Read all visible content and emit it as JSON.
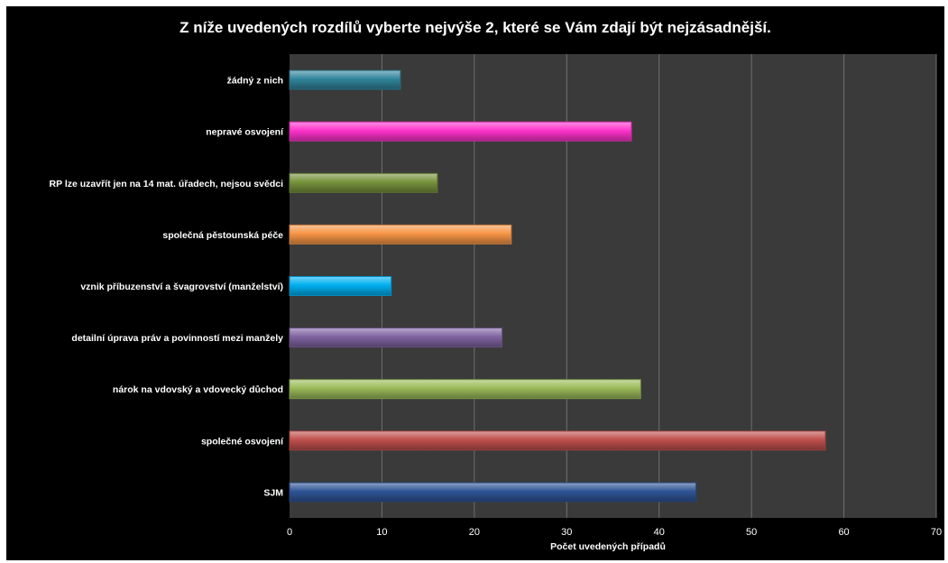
{
  "chart_data": {
    "type": "bar",
    "orientation": "horizontal",
    "title": "Z níže uvedených rozdílů vyberte nejvýše 2, které se Vám zdají být nejzásadnější.",
    "xlabel": "Počet uvedených  případů",
    "ylabel": "",
    "xlim": [
      0,
      70
    ],
    "xticks": [
      0,
      10,
      20,
      30,
      40,
      50,
      60,
      70
    ],
    "grid": true,
    "legend": "none",
    "categories": [
      "SJM",
      "společné osvojení",
      "nárok na vdovský a vdovecký důchod",
      "detailní úprava práv a povinností mezi manžely",
      "vznik příbuzenství a švagrovství (manželství)",
      "společná pěstounská péče",
      "RP lze uzavřít jen na 14 mat. úřadech, nejsou svědci",
      "nepravé osvojení",
      "žádný z nich"
    ],
    "values": [
      44,
      58,
      38,
      23,
      11,
      24,
      16,
      37,
      12
    ],
    "colors": [
      "#2f5597",
      "#c0504d",
      "#9bbb59",
      "#8064a2",
      "#00b0f0",
      "#f79646",
      "#77933c",
      "#ff33cc",
      "#31859c"
    ],
    "background": "#000000",
    "plot_background": "#3a3a3a"
  }
}
